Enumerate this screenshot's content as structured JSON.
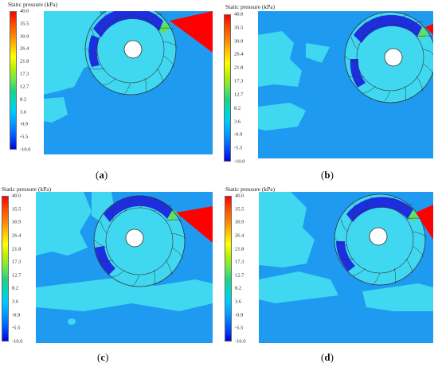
{
  "colorbar": {
    "title": "Static pressure (kPa)",
    "ticks": [
      "40.0",
      "35.5",
      "30.9",
      "26.4",
      "21.8",
      "17.3",
      "12.7",
      "8.2",
      "3.6",
      "-0.9",
      "-5.5",
      "-10.0"
    ]
  },
  "panels": [
    {
      "label": "a"
    },
    {
      "label": "b"
    },
    {
      "label": "c"
    },
    {
      "label": "d"
    }
  ],
  "colors": {
    "background_field": "#1e9bf0",
    "light_region": "#40d8f0",
    "low_pressure": "#1d2ee0",
    "mid_green": "#5ce06a",
    "high_pressure": "#ff0000",
    "runner_lines": "#333333"
  }
}
